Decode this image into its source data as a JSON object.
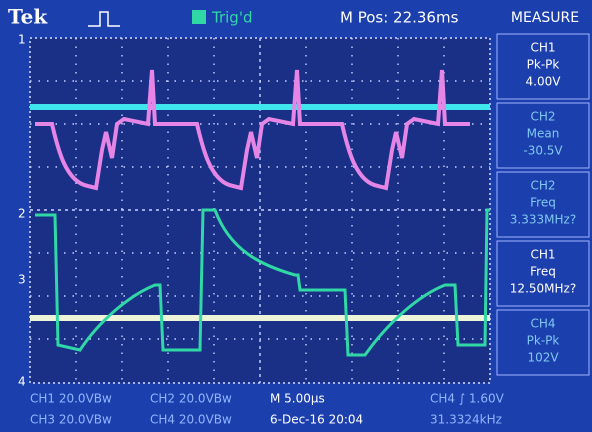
{
  "header": {
    "brand": "Tek",
    "trigger_status": "Trig'd",
    "position": "M Pos: 22.36ms",
    "menu_title": "MEASURE"
  },
  "measurements": [
    {
      "channel": "CH1",
      "label": "Pk-Pk",
      "value": "4.00V"
    },
    {
      "channel": "CH2",
      "label": "Mean",
      "value": "-30.5V"
    },
    {
      "channel": "CH2",
      "label": "Freq",
      "value": "3.333MHz?"
    },
    {
      "channel": "CH1",
      "label": "Freq",
      "value": "12.50MHz?"
    },
    {
      "channel": "CH4",
      "label": "Pk-Pk",
      "value": "102V"
    }
  ],
  "footer": {
    "row1": [
      "CH1  20.0VBw",
      "CH2  20.0VBw",
      "M 5.00µs",
      "CH4 ∫ 1.60V"
    ],
    "row2": [
      "CH3  20.0VBw",
      "CH4  20.0VBw",
      "6-Dec-16 20:04",
      "31.3324kHz"
    ]
  },
  "markers": [
    "1",
    "2",
    "3",
    "4"
  ]
}
